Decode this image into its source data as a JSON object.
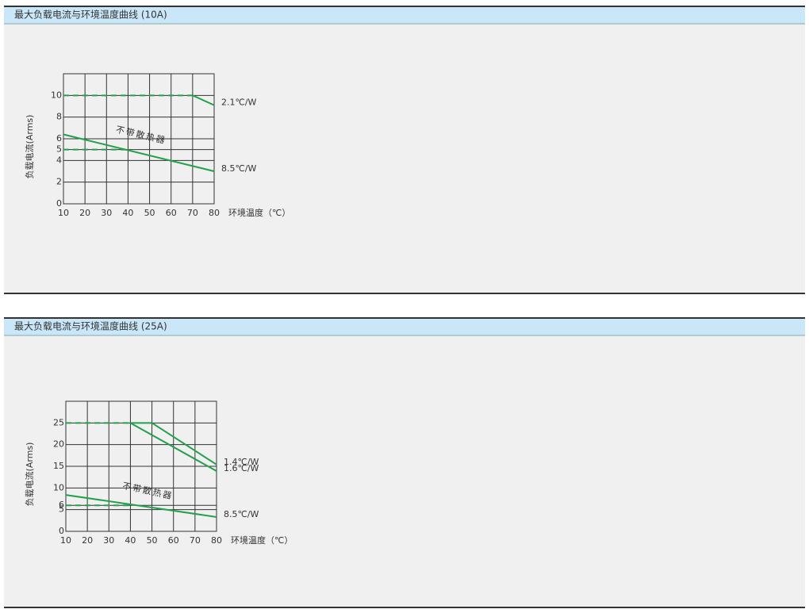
{
  "chart_data": [
    {
      "type": "line",
      "title": "最大负载电流与环境温度曲线 (10A)",
      "x_label": "环境温度（℃）",
      "y_label": "负载电流(Arms)",
      "xlim": [
        10,
        80
      ],
      "ylim": [
        0,
        12
      ],
      "xticks": [
        10,
        20,
        30,
        40,
        50,
        60,
        70,
        80
      ],
      "yticks": [
        0,
        2,
        4,
        5,
        6,
        8,
        10
      ],
      "grid": true,
      "annotation": "不带散热器",
      "series": [
        {
          "name": "2.1℃/W",
          "color": "#22a04b",
          "x": [
            10,
            70,
            80
          ],
          "values": [
            10,
            10,
            9.1
          ],
          "line_styles": [
            "dashed",
            "solid"
          ]
        },
        {
          "name": "8.5℃/W",
          "color": "#22a04b",
          "x": [
            10,
            80
          ],
          "values": [
            6.4,
            3.0
          ],
          "line_styles": [
            "solid"
          ]
        },
        {
          "color": "#22a04b",
          "x": [
            10,
            40
          ],
          "values": [
            5,
            5
          ],
          "line_styles": [
            "dashed"
          ]
        }
      ]
    },
    {
      "type": "line",
      "title": "最大负载电流与环境温度曲线 (25A)",
      "x_label": "环境温度（℃）",
      "y_label": "负载电流(Arms)",
      "xlim": [
        10,
        80
      ],
      "ylim": [
        0,
        30
      ],
      "xticks": [
        10,
        20,
        30,
        40,
        50,
        60,
        70,
        80
      ],
      "yticks": [
        0,
        5,
        6,
        10,
        15,
        20,
        25
      ],
      "grid": true,
      "annotation": "不带散热器",
      "series": [
        {
          "name": "1.4℃/W",
          "color": "#22a04b",
          "x": [
            10,
            40,
            50,
            80
          ],
          "values": [
            25,
            25,
            25,
            15.4
          ],
          "line_styles": [
            "dashed",
            "solid",
            "solid"
          ]
        },
        {
          "name": "1.6℃/W",
          "color": "#22a04b",
          "x": [
            40,
            80
          ],
          "values": [
            25,
            13.9
          ],
          "line_styles": [
            "solid"
          ]
        },
        {
          "name": "8.5℃/W",
          "color": "#22a04b",
          "x": [
            10,
            80
          ],
          "values": [
            8.4,
            3.3
          ],
          "line_styles": [
            "solid"
          ]
        },
        {
          "color": "#22a04b",
          "x": [
            10,
            40
          ],
          "values": [
            6,
            6
          ],
          "line_styles": [
            "dashed"
          ]
        }
      ]
    }
  ]
}
